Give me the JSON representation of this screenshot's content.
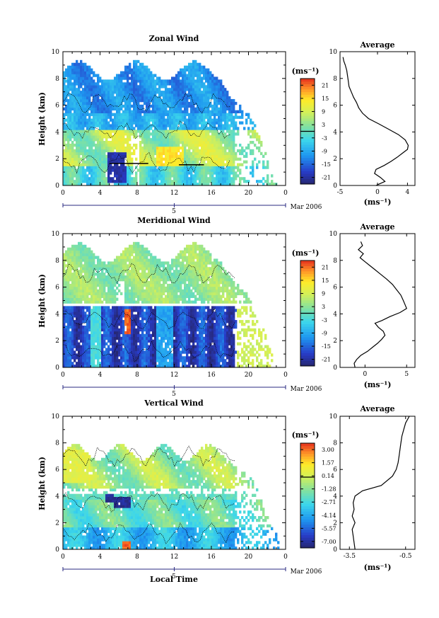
{
  "common": {
    "xlabel": "Local Time",
    "day_label": "5",
    "date_label": "Mar 2006",
    "x_ticks": [
      "0",
      "4",
      "8",
      "12",
      "16",
      "20",
      "0"
    ],
    "y_ticks": [
      "0",
      "2",
      "4",
      "6",
      "8",
      "10"
    ],
    "ylabel": "Height (km)",
    "units": "(ms⁻¹)",
    "avg_title": "Average",
    "avg_xlabel": "(ms⁻¹)"
  },
  "chart_data": [
    {
      "type": "heatmap",
      "title": "Zonal Wind",
      "xlim": [
        0,
        24
      ],
      "ylim": [
        0,
        10
      ],
      "colorbar_ticks": [
        "21",
        "15",
        "9",
        "3",
        "-3",
        "-9",
        "-15",
        "-21"
      ],
      "colorbar_range": [
        -24,
        24
      ],
      "description_fields": {
        "black_dashed_contour_lines": true
      }
    },
    {
      "type": "line",
      "title": "Average",
      "panel": "zonal",
      "xlim": [
        -5,
        5
      ],
      "ylim": [
        0,
        10
      ],
      "x_ticks": [
        "-5",
        "0",
        "4"
      ],
      "x": [
        -4.6,
        -4.5,
        -4.3,
        -4.1,
        -4.0,
        -3.9,
        -3.8,
        -3.5,
        -3.2,
        -2.8,
        -2.5,
        -2.0,
        -1.2,
        0.2,
        1.5,
        2.8,
        3.7,
        4.1,
        4.0,
        3.3,
        2.6,
        1.8,
        0.9,
        -0.2,
        -0.4,
        0.4,
        1.0,
        0.2,
        -0.2
      ],
      "y": [
        9.6,
        9.3,
        9.0,
        8.6,
        8.2,
        7.8,
        7.4,
        7.0,
        6.6,
        6.2,
        5.8,
        5.4,
        5.0,
        4.6,
        4.2,
        3.8,
        3.4,
        3.0,
        2.7,
        2.4,
        2.1,
        1.8,
        1.5,
        1.2,
        0.9,
        0.6,
        0.3,
        0.1,
        0.0
      ]
    },
    {
      "type": "heatmap",
      "title": "Meridional Wind",
      "xlim": [
        0,
        24
      ],
      "ylim": [
        0,
        10
      ],
      "colorbar_ticks": [
        "21",
        "15",
        "9",
        "3",
        "-3",
        "-9",
        "-15",
        "-21"
      ],
      "colorbar_range": [
        -24,
        24
      ],
      "description_fields": {
        "black_dashed_contour_lines": true
      }
    },
    {
      "type": "line",
      "title": "Average",
      "panel": "meridional",
      "xlim": [
        -3,
        6
      ],
      "ylim": [
        0,
        10
      ],
      "x_ticks": [
        "0",
        "5"
      ],
      "x": [
        -0.5,
        -0.3,
        -0.8,
        -0.2,
        -0.6,
        0.0,
        0.6,
        1.2,
        1.8,
        2.6,
        3.3,
        3.8,
        4.3,
        4.6,
        4.8,
        5.0,
        4.2,
        3.0,
        2.0,
        1.2,
        1.6,
        2.2,
        2.4,
        2.0,
        1.5,
        0.9,
        0.3,
        -0.5,
        -1.0,
        -1.3,
        -1.2
      ],
      "y": [
        9.4,
        9.1,
        8.8,
        8.5,
        8.2,
        7.9,
        7.6,
        7.3,
        7.0,
        6.6,
        6.2,
        5.8,
        5.4,
        5.0,
        4.7,
        4.4,
        4.1,
        3.8,
        3.5,
        3.3,
        3.0,
        2.7,
        2.4,
        2.1,
        1.8,
        1.5,
        1.2,
        0.9,
        0.6,
        0.3,
        0.0
      ]
    },
    {
      "type": "heatmap",
      "title": "Vertical Wind",
      "xlim": [
        0,
        24
      ],
      "ylim": [
        0,
        10
      ],
      "colorbar_ticks": [
        "3.00",
        "1.57",
        "0.14",
        "-1.28",
        "-2.71",
        "-4.14",
        "-5.57",
        "-7.00"
      ],
      "colorbar_range": [
        -7.7,
        3.7
      ]
    },
    {
      "type": "line",
      "title": "Average",
      "panel": "vertical",
      "xlim": [
        -4.0,
        0.0
      ],
      "ylim": [
        0,
        10
      ],
      "x_ticks": [
        "-3.5",
        "-0.5"
      ],
      "x": [
        -0.3,
        -0.5,
        -0.6,
        -0.7,
        -0.75,
        -0.8,
        -0.85,
        -0.9,
        -1.0,
        -1.2,
        -1.8,
        -2.8,
        -3.2,
        -3.3,
        -3.25,
        -3.35,
        -3.2,
        -3.35,
        -3.3,
        -3.25,
        -3.2
      ],
      "y": [
        10.0,
        9.5,
        9.0,
        8.5,
        8.0,
        7.5,
        7.0,
        6.5,
        6.0,
        5.5,
        4.8,
        4.4,
        4.0,
        3.5,
        3.0,
        2.5,
        2.0,
        1.5,
        1.0,
        0.5,
        0.0
      ]
    }
  ]
}
